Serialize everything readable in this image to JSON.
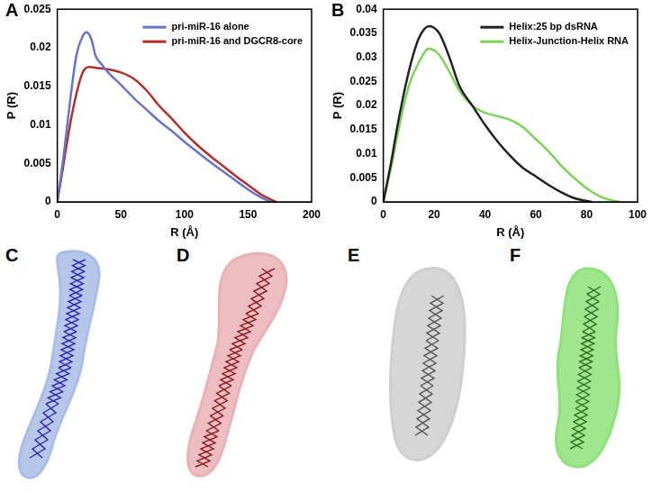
{
  "chart_data": [
    {
      "panel": "A",
      "type": "line",
      "x_label": "R (Å)",
      "y_label": "P (R)",
      "xlim": [
        0,
        200
      ],
      "xticks": [
        0,
        50,
        100,
        150,
        200
      ],
      "ylim": [
        0,
        0.025
      ],
      "yticks": [
        0,
        0.005,
        0.01,
        0.015,
        0.02,
        0.025
      ],
      "grid": false,
      "legend": "upper right",
      "series": [
        {
          "name": "pri-miR-16 alone",
          "color": "#6b74c4",
          "x": [
            0,
            5,
            10,
            15,
            20,
            23,
            27,
            30,
            35,
            40,
            50,
            60,
            70,
            80,
            90,
            100,
            110,
            120,
            130,
            140,
            150,
            160,
            168
          ],
          "values": [
            0,
            0.006,
            0.013,
            0.019,
            0.0215,
            0.022,
            0.021,
            0.019,
            0.0178,
            0.0168,
            0.0152,
            0.0135,
            0.012,
            0.0105,
            0.0092,
            0.0078,
            0.0065,
            0.0052,
            0.004,
            0.0028,
            0.0016,
            0.0006,
            0
          ]
        },
        {
          "name": "pri-miR-16 and DGCR8-core",
          "color": "#b0302a",
          "x": [
            0,
            5,
            10,
            15,
            20,
            25,
            30,
            40,
            50,
            60,
            70,
            80,
            90,
            100,
            110,
            120,
            130,
            140,
            150,
            160,
            172
          ],
          "values": [
            0,
            0.005,
            0.01,
            0.014,
            0.0168,
            0.0175,
            0.0174,
            0.0172,
            0.0168,
            0.016,
            0.0145,
            0.0125,
            0.0108,
            0.009,
            0.0074,
            0.006,
            0.0047,
            0.0034,
            0.0022,
            0.001,
            0
          ]
        }
      ]
    },
    {
      "panel": "B",
      "type": "line",
      "x_label": "R (Å)",
      "y_label": "P (R)",
      "xlim": [
        0,
        100
      ],
      "xticks": [
        0,
        20,
        40,
        60,
        80,
        100
      ],
      "ylim": [
        0,
        0.04
      ],
      "yticks": [
        0,
        0.005,
        0.01,
        0.015,
        0.02,
        0.025,
        0.03,
        0.035,
        0.04
      ],
      "grid": false,
      "legend": "upper right",
      "series": [
        {
          "name": "Helix:25 bp dsRNA",
          "color": "#222222",
          "x": [
            0,
            3,
            6,
            10,
            14,
            18,
            22,
            26,
            30,
            35,
            40,
            45,
            50,
            55,
            60,
            65,
            70,
            75,
            80,
            82
          ],
          "values": [
            0,
            0.008,
            0.017,
            0.027,
            0.034,
            0.0365,
            0.035,
            0.03,
            0.024,
            0.02,
            0.016,
            0.0125,
            0.0095,
            0.007,
            0.0053,
            0.0035,
            0.002,
            0.0008,
            0.0002,
            0
          ]
        },
        {
          "name": "Helix-Junction-Helix RNA",
          "color": "#7dd35a",
          "x": [
            0,
            3,
            6,
            10,
            14,
            18,
            22,
            26,
            30,
            35,
            40,
            45,
            50,
            55,
            60,
            65,
            70,
            75,
            80,
            85,
            90,
            93
          ],
          "values": [
            0,
            0.007,
            0.015,
            0.024,
            0.029,
            0.0318,
            0.0305,
            0.027,
            0.023,
            0.02,
            0.0185,
            0.0178,
            0.017,
            0.0155,
            0.013,
            0.0105,
            0.0075,
            0.005,
            0.0028,
            0.0012,
            0.0003,
            0
          ]
        }
      ]
    }
  ],
  "panels": [
    "C",
    "D",
    "E",
    "F"
  ]
}
